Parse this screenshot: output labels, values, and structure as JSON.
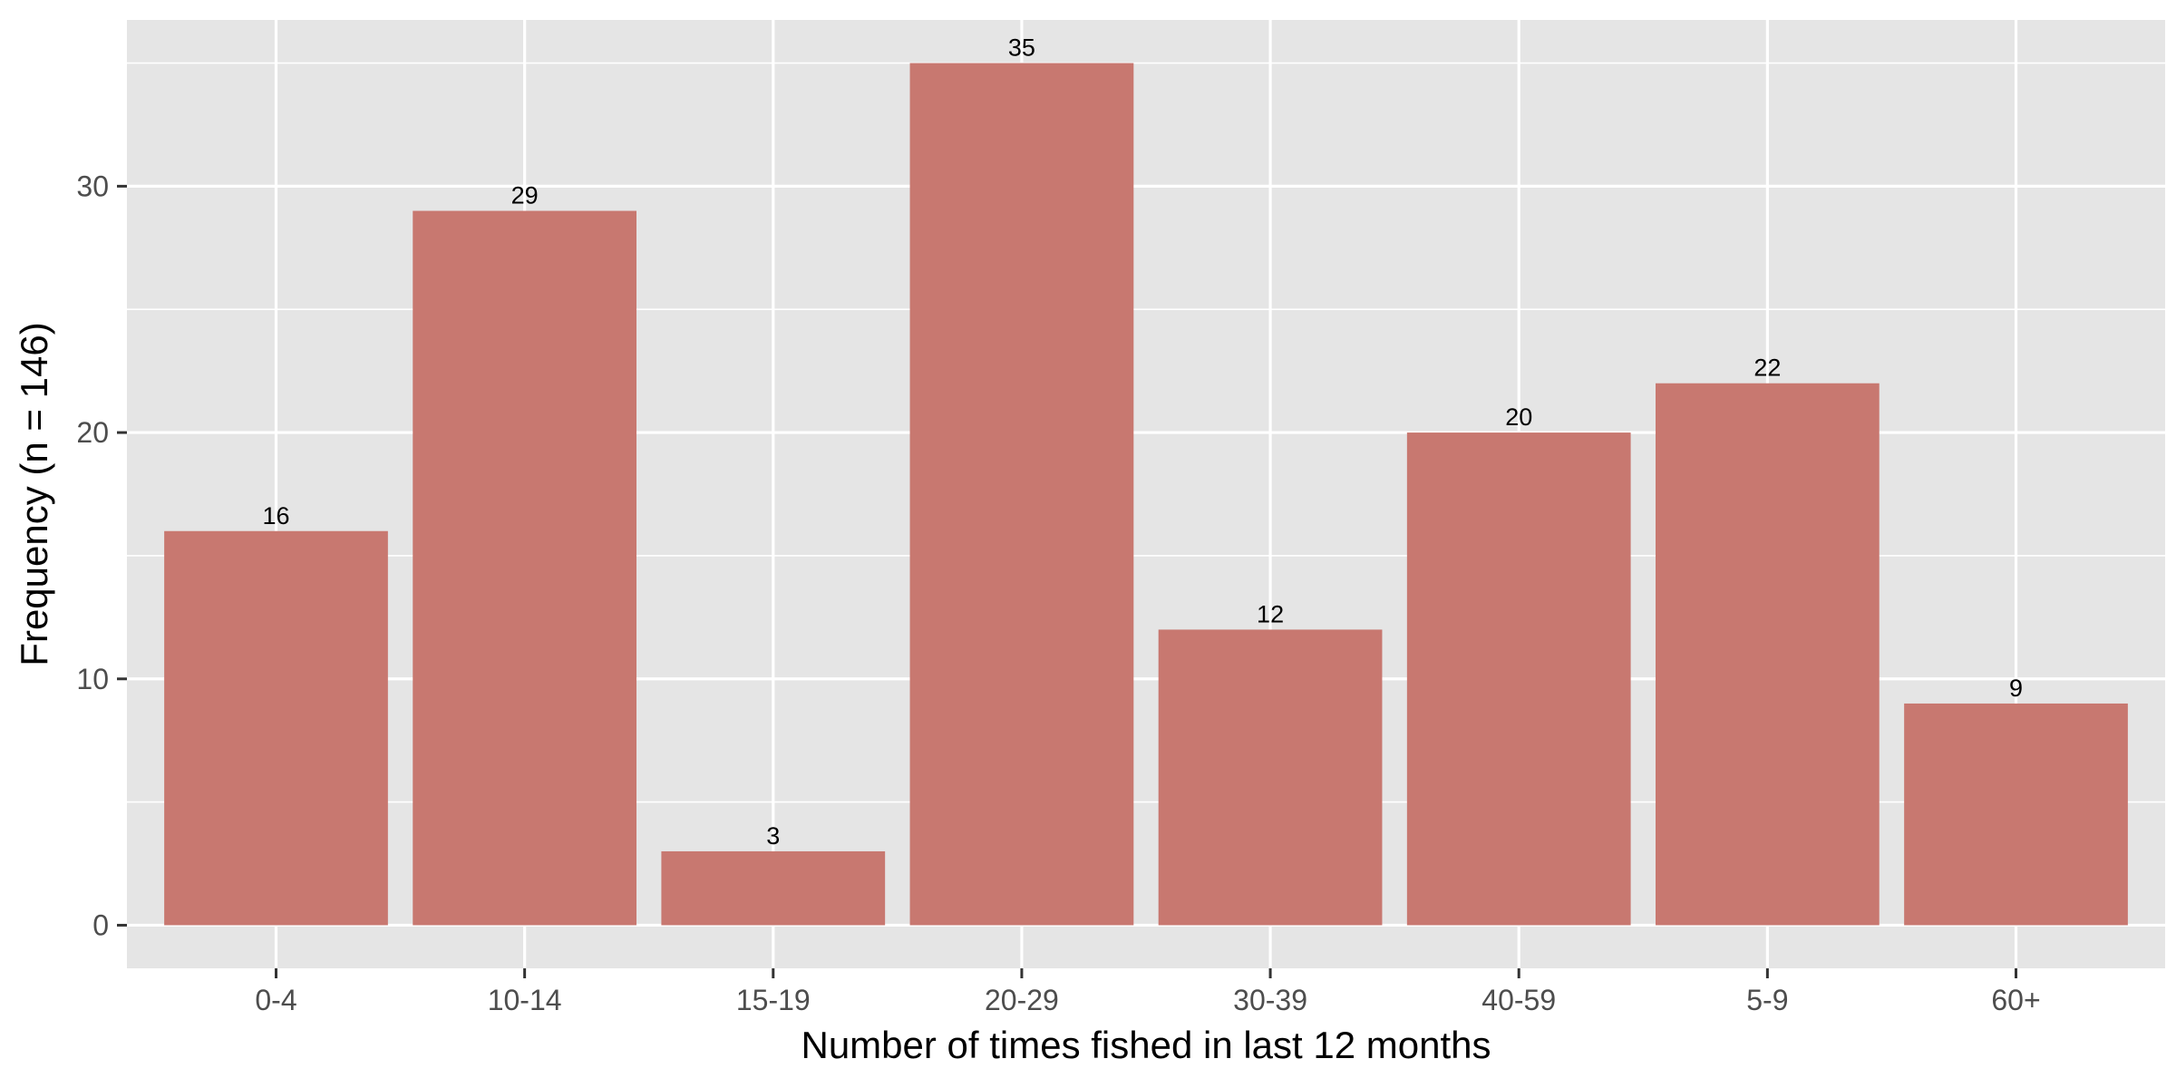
{
  "chart_data": {
    "type": "bar",
    "title": "",
    "xlabel": "Number of times fished in last 12 months",
    "ylabel": "Frequency (n = 146)",
    "categories": [
      "0-4",
      "10-14",
      "15-19",
      "20-29",
      "30-39",
      "40-59",
      "5-9",
      "60+"
    ],
    "values": [
      16,
      29,
      3,
      35,
      12,
      20,
      22,
      9
    ],
    "data_labels": [
      "16",
      "29",
      "3",
      "35",
      "12",
      "20",
      "22",
      "9"
    ],
    "ylim": [
      -1.75,
      36.75
    ],
    "yticks": [
      0,
      10,
      20,
      30
    ],
    "ytick_labels": [
      "0",
      "10",
      "20",
      "30"
    ],
    "grid": true,
    "legend": "none",
    "colors": {
      "bar": "#c87870",
      "panel": "#e5e5e5",
      "grid": "#ffffff",
      "tick": "#333333"
    }
  }
}
